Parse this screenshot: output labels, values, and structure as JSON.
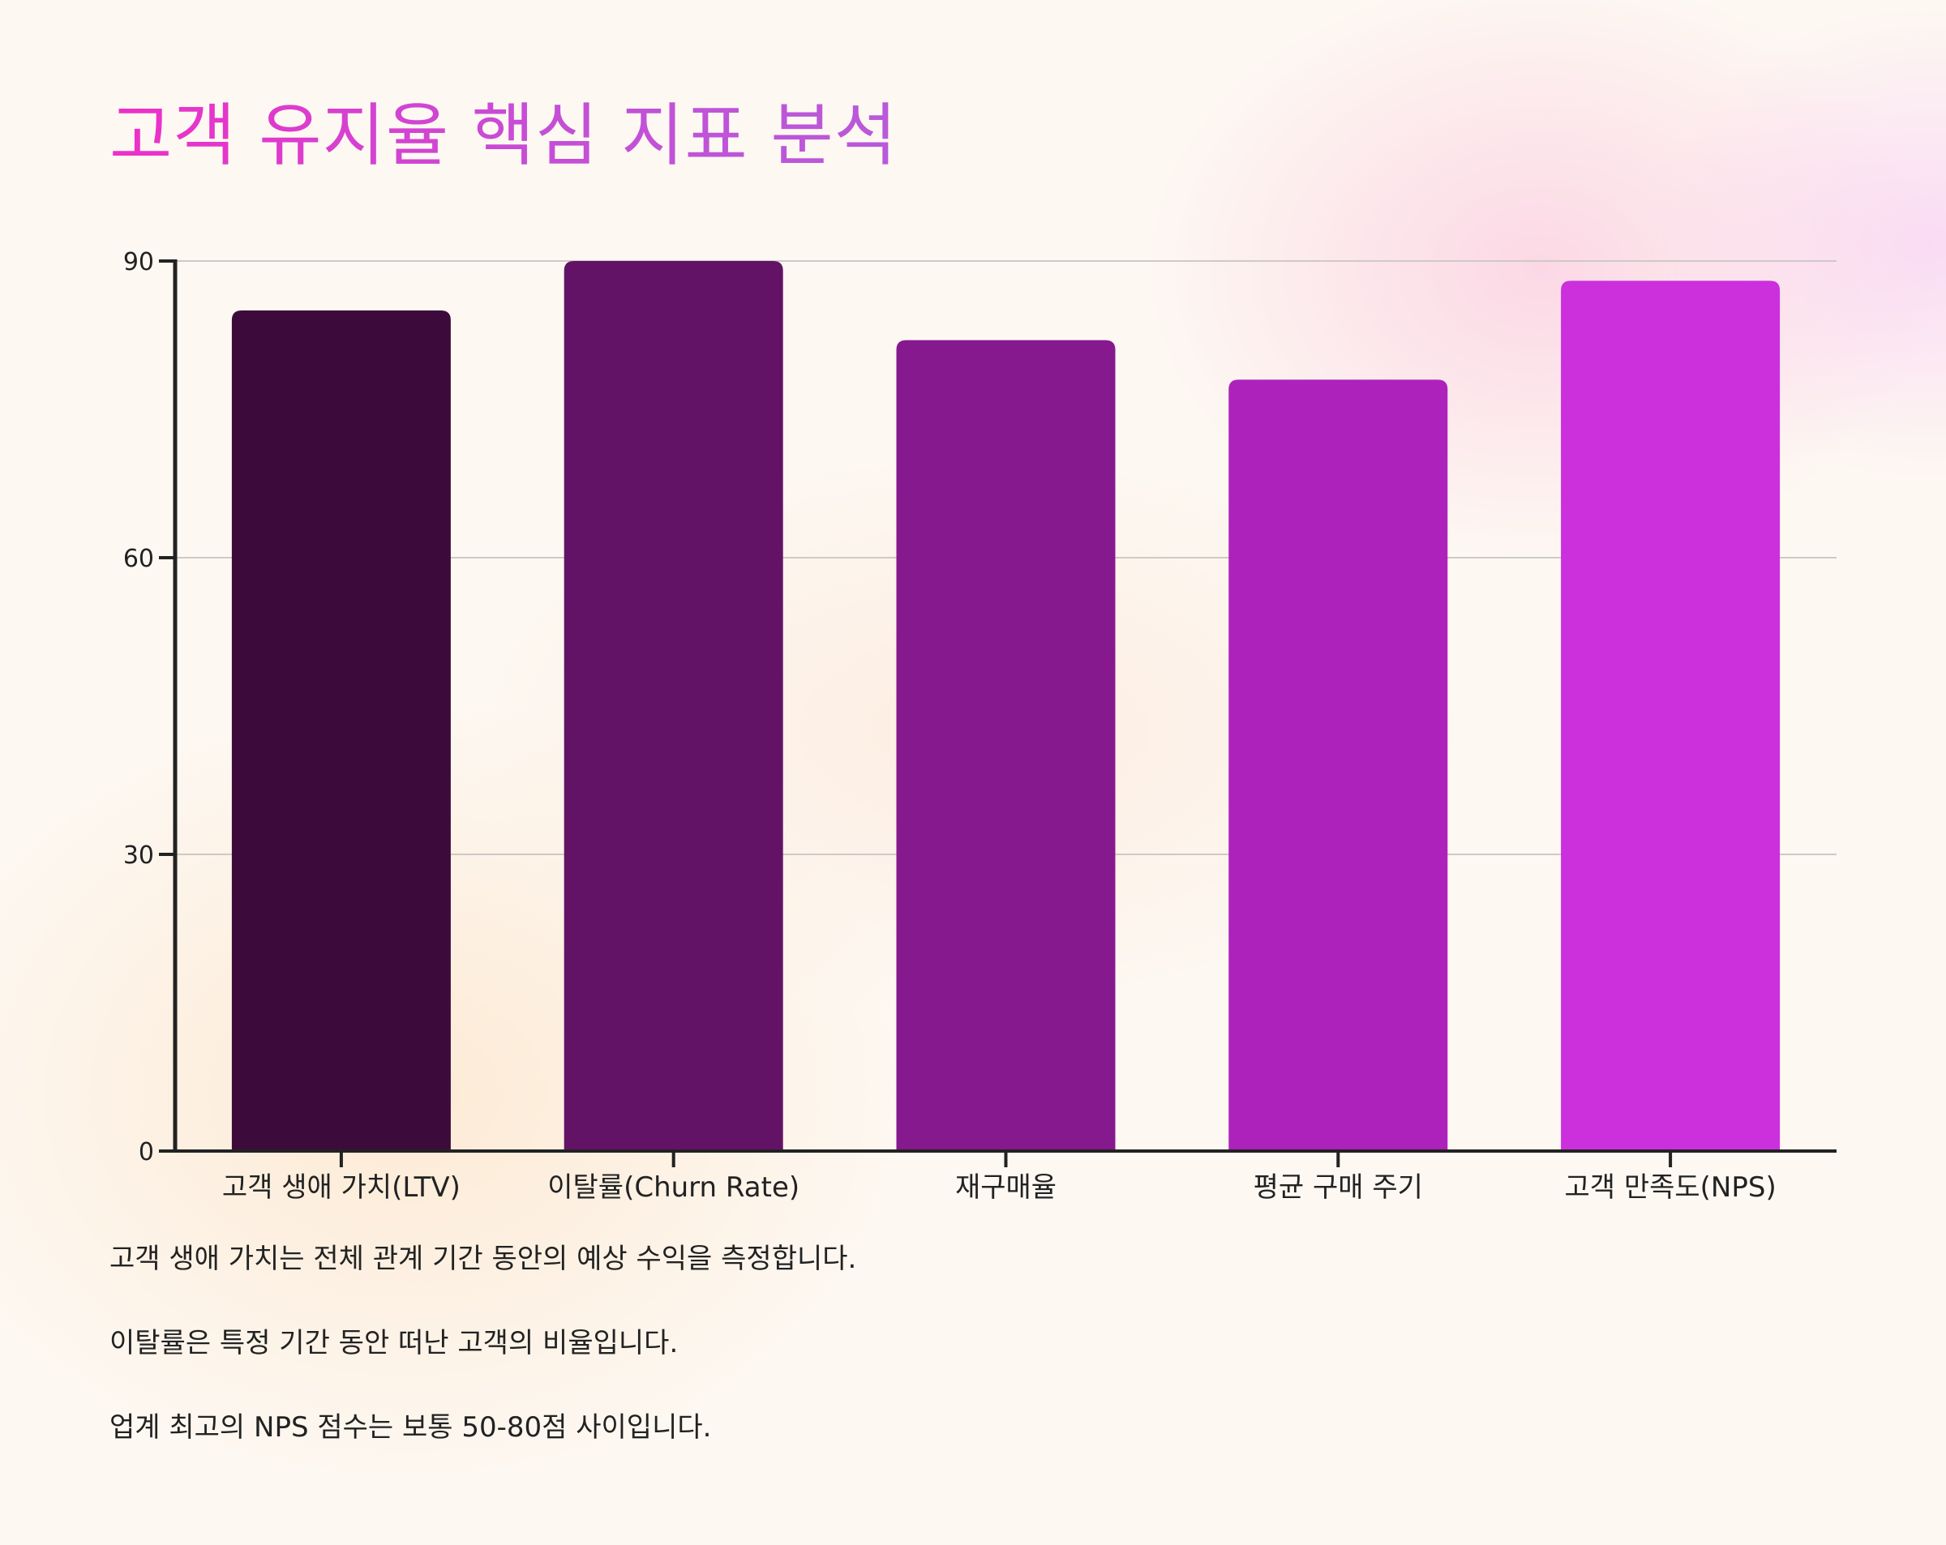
{
  "title": "고객 유지율 핵심 지표 분석",
  "chart_data": {
    "type": "bar",
    "categories": [
      "고객 생애 가치(LTV)",
      "이탈률(Churn Rate)",
      "재구매율",
      "평균 구매 주기",
      "고객 만족도(NPS)"
    ],
    "values": [
      85,
      90,
      82,
      78,
      88
    ],
    "colors": [
      "#3d0b3b",
      "#621366",
      "#87198f",
      "#ad22bb",
      "#cb30dc"
    ],
    "yticks": [
      "0",
      "30",
      "60",
      "90"
    ],
    "ylim": [
      0,
      90
    ],
    "grid": true,
    "legend": false,
    "xlabel": "",
    "ylabel": ""
  },
  "notes": [
    "고객 생애 가치는 전체 관계 기간 동안의 예상 수익을 측정합니다.",
    "이탈률은 특정 기간 동안 떠난 고객의 비율입니다.",
    "업계 최고의 NPS 점수는 보통 50-80점 사이입니다."
  ]
}
